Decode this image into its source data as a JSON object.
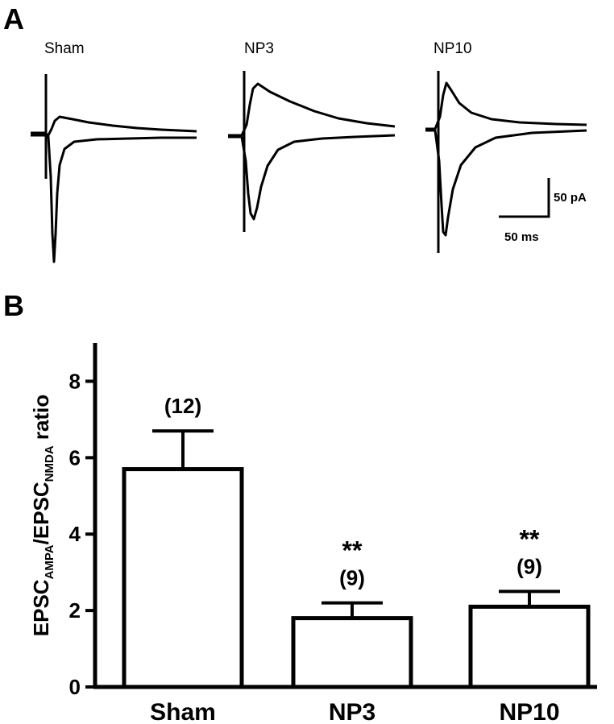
{
  "panel_a": {
    "label": "A",
    "traces": [
      {
        "name": "Sham"
      },
      {
        "name": "NP3"
      },
      {
        "name": "NP10"
      }
    ],
    "scale_bar": {
      "y_label": "50 pA",
      "x_label": "50 ms"
    }
  },
  "panel_b": {
    "label": "B"
  },
  "chart_data": {
    "type": "bar",
    "categories": [
      "Sham",
      "NP3",
      "NP10"
    ],
    "values": [
      5.7,
      1.8,
      2.1
    ],
    "error": [
      1.0,
      0.4,
      0.4
    ],
    "n_labels": [
      "(12)",
      "(9)",
      "(9)"
    ],
    "significance": [
      "",
      "**",
      "**"
    ],
    "ylabel": {
      "p1": "EPSC",
      "s1": "AMPA",
      "p2": "/EPSC",
      "s2": "NMDA",
      "p3": " ratio"
    },
    "ylim": [
      0,
      9
    ],
    "yticks": [
      0,
      2,
      4,
      6,
      8
    ],
    "ytick_labels": [
      "0",
      "2",
      "4",
      "6",
      "8"
    ],
    "bar_fill": "#ffffff",
    "stroke_color": "#000000",
    "grid": false
  }
}
